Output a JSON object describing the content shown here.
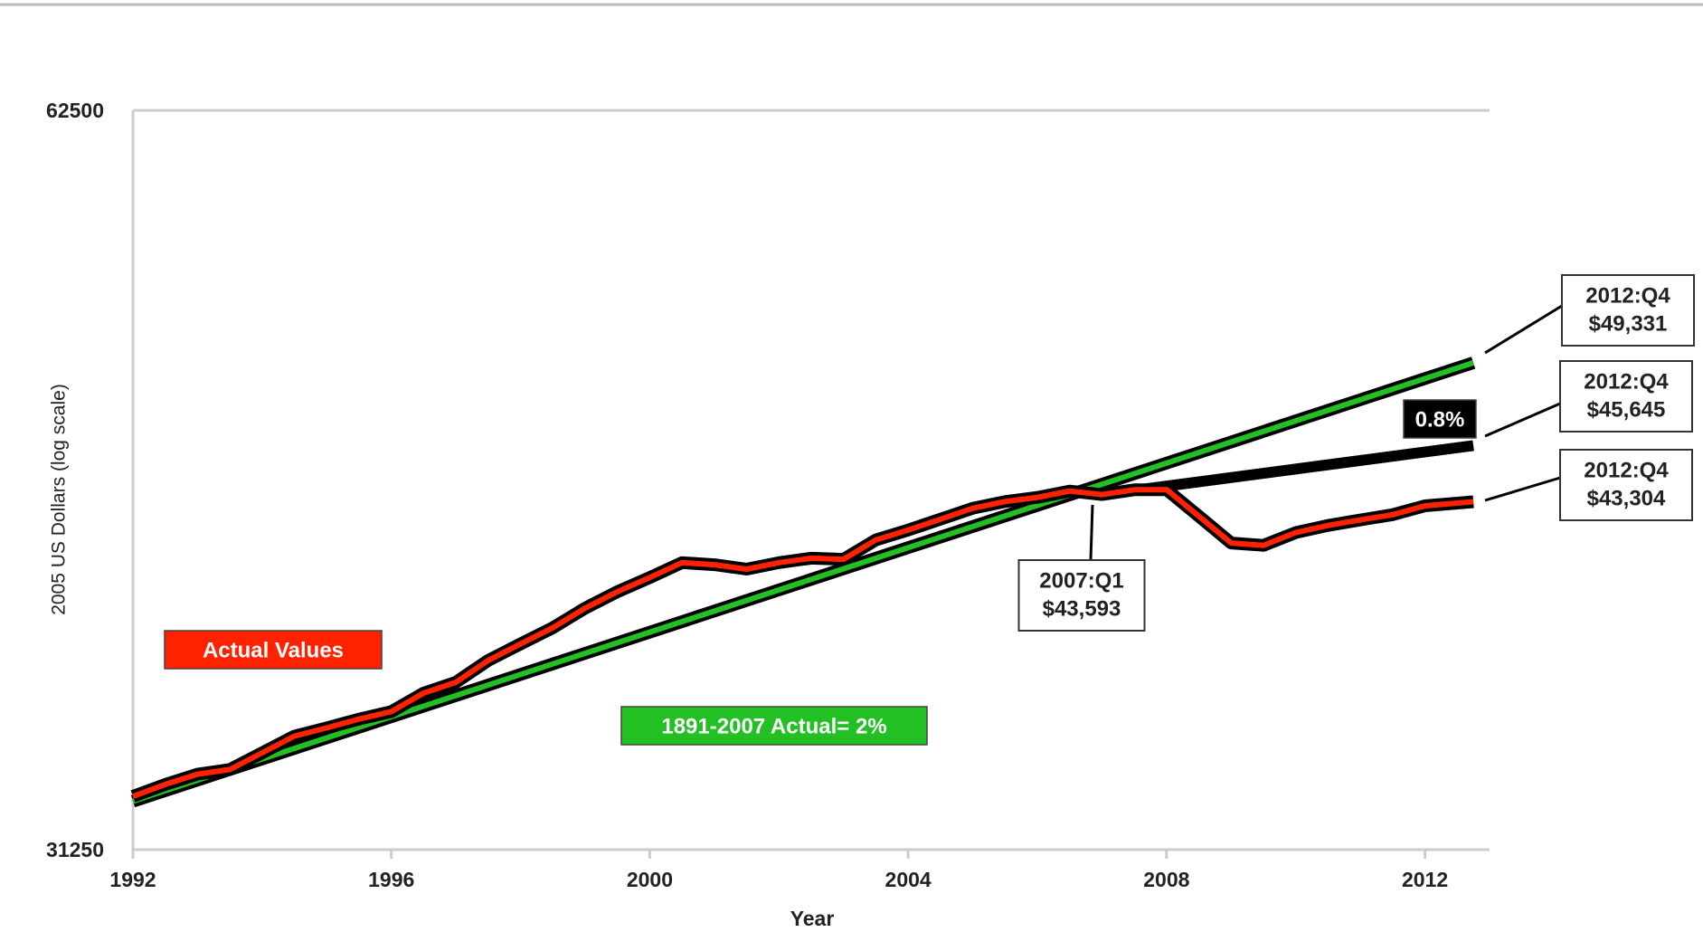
{
  "chart_data": {
    "type": "line",
    "y_label": "2005 US Dollars (log scale)",
    "x_label": "Year",
    "log_scale": true,
    "xlim": [
      1992,
      2013
    ],
    "xticks": [
      1992,
      1996,
      2000,
      2004,
      2008,
      2012
    ],
    "ylim": [
      31250,
      62500
    ],
    "yticks": [
      31250,
      62500
    ],
    "series": [
      {
        "name": "Actual Values",
        "color": "#ff2200",
        "x": [
          1992,
          1992.5,
          1993,
          1993.5,
          1994,
          1994.5,
          1995,
          1995.5,
          1996,
          1996.5,
          1997,
          1997.5,
          1998,
          1998.5,
          1999,
          1999.5,
          2000,
          2000.5,
          2001,
          2001.5,
          2002,
          2002.5,
          2003,
          2003.5,
          2004,
          2004.5,
          2005,
          2005.5,
          2006,
          2006.5,
          2007,
          2007.5,
          2008,
          2008.5,
          2009,
          2009.5,
          2010,
          2010.5,
          2011,
          2011.5,
          2012,
          2012.75
        ],
        "values": [
          32850,
          33220,
          33540,
          33690,
          34220,
          34760,
          35030,
          35320,
          35570,
          36190,
          36560,
          37320,
          37900,
          38480,
          39190,
          39800,
          40330,
          40900,
          40820,
          40650,
          40900,
          41070,
          41030,
          41780,
          42170,
          42600,
          43040,
          43310,
          43480,
          43740,
          43593,
          43790,
          43800,
          42720,
          41660,
          41570,
          42070,
          42350,
          42570,
          42780,
          43140,
          43304
        ]
      },
      {
        "name": "1891-2007 Actual= 2%",
        "color": "#22c022",
        "x": [
          1992,
          2012.75
        ],
        "values": [
          32700,
          49331
        ]
      },
      {
        "name": "0.8%",
        "color": "#000000",
        "x": [
          2007,
          2012.75
        ],
        "values": [
          43593,
          45645
        ]
      }
    ],
    "annotations": [
      {
        "lines": [
          "2012:Q4",
          "$49,331"
        ]
      },
      {
        "lines": [
          "2012:Q4",
          "$45,645"
        ]
      },
      {
        "lines": [
          "2012:Q4",
          "$43,304"
        ]
      },
      {
        "lines": [
          "2007:Q1",
          "$43,593"
        ]
      }
    ]
  }
}
